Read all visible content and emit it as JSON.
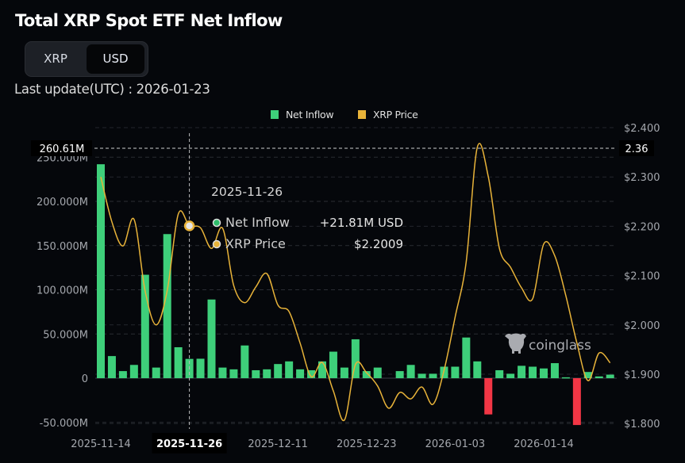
{
  "header": {
    "title": "Total XRP Spot ETF Net Inflow",
    "toggle": [
      {
        "label": "XRP",
        "selected": false
      },
      {
        "label": "USD",
        "selected": true
      }
    ],
    "last_update": "Last update(UTC) : 2026-01-23"
  },
  "colors": {
    "inflow": "#3ecf7a",
    "outflow": "#f23645",
    "price": "#e8b339",
    "background": "#05070b"
  },
  "watermark": "coinglass",
  "chart_data": {
    "type": "bar+line",
    "title": "Total XRP Spot ETF Net Inflow",
    "legend": [
      {
        "name": "Net Inflow",
        "color": "#3ecf7a"
      },
      {
        "name": "XRP Price",
        "color": "#e8b339"
      }
    ],
    "legend_position": "top-center",
    "x_tick_labels": [
      {
        "index": 0,
        "label": "2025-11-14"
      },
      {
        "index": 8,
        "label": "2025-11-26"
      },
      {
        "index": 16,
        "label": "2025-12-11"
      },
      {
        "index": 24,
        "label": "2025-12-23"
      },
      {
        "index": 32,
        "label": "2026-01-03"
      },
      {
        "index": 40,
        "label": "2026-01-14"
      }
    ],
    "left_axis": {
      "unit": "USD",
      "ylim": [
        -55,
        270
      ],
      "ticks": [
        "250.000M",
        "200.000M",
        "150.000M",
        "100.000M",
        "50.000M",
        "0",
        "-50.000M"
      ],
      "tick_values": [
        250,
        200,
        150,
        100,
        50,
        0,
        -50
      ]
    },
    "right_axis": {
      "unit": "USD",
      "ylim": [
        1.79,
        2.42
      ],
      "ticks": [
        "$2.400",
        "$2.300",
        "$2.200",
        "$2.100",
        "$2.000",
        "$1.900",
        "$1.800"
      ],
      "tick_values": [
        2.4,
        2.3,
        2.2,
        2.1,
        2.0,
        1.9,
        1.8
      ]
    },
    "series": [
      {
        "name": "Net Inflow",
        "unit": "M USD",
        "axis": "left",
        "type": "bar",
        "values": [
          242,
          25,
          8,
          15,
          117,
          12,
          163,
          35,
          21.81,
          22,
          89,
          12,
          10,
          37,
          9,
          10,
          16,
          19,
          10,
          9,
          19,
          30,
          12,
          44,
          8,
          12,
          0,
          8,
          15,
          5,
          5,
          13,
          13,
          46,
          19,
          -41,
          9,
          5,
          14,
          13,
          11,
          17,
          1,
          -53,
          7,
          2,
          4
        ]
      },
      {
        "name": "XRP Price",
        "unit": "USD",
        "axis": "right",
        "type": "line",
        "values": [
          2.3,
          2.209,
          2.16,
          2.214,
          2.069,
          2.0,
          2.07,
          2.225,
          2.2009,
          2.197,
          2.155,
          2.196,
          2.08,
          2.045,
          2.077,
          2.104,
          2.04,
          2.027,
          1.963,
          1.895,
          1.924,
          1.866,
          1.807,
          1.92,
          1.903,
          1.876,
          1.831,
          1.863,
          1.85,
          1.874,
          1.839,
          1.908,
          2.016,
          2.128,
          2.36,
          2.3,
          2.155,
          2.117,
          2.075,
          2.053,
          2.164,
          2.14,
          2.059,
          1.963,
          1.887,
          1.943,
          1.923
        ]
      }
    ],
    "crosshair": {
      "index": 8,
      "left_label": "260.61M",
      "right_label": "2.36",
      "x_label": "2025-11-26"
    },
    "tooltip": {
      "date": "2025-11-26",
      "rows": [
        {
          "label": "Net Inflow",
          "value": "+21.81M USD"
        },
        {
          "label": "XRP Price",
          "value": "$2.2009"
        }
      ]
    }
  }
}
